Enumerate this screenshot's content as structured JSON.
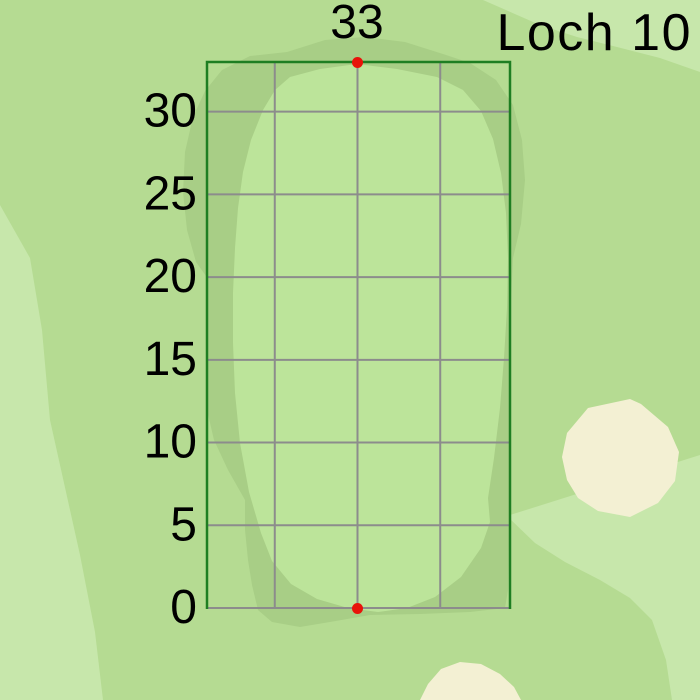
{
  "header": {
    "title": "Loch 10",
    "top_distance_label": "33"
  },
  "axis": {
    "tick_labels": [
      "0",
      "5",
      "10",
      "15",
      "20",
      "25",
      "30"
    ],
    "tick_values": [
      0,
      5,
      10,
      15,
      20,
      25,
      30
    ],
    "y_min": 0,
    "y_max": 33,
    "x_gridline_values": [
      -5,
      0,
      5
    ]
  },
  "markers": [
    {
      "name": "green-back-marker",
      "x": 0,
      "y": 33
    },
    {
      "name": "green-front-marker",
      "x": 0,
      "y": 0
    }
  ],
  "features": {
    "putting_green": "putting-green",
    "fringe": "fringe-collar",
    "bunkers": [
      "greenside-bunker-right",
      "bunker-bottom-edge"
    ]
  },
  "colors": {
    "background": "#b5db92",
    "background_light": "#c7e7ab",
    "fringe": "#a8ce86",
    "green": "#bce49a",
    "bunker": "#f3f0d3",
    "grid_border": "#1e7e22",
    "grid_line": "#8c8c8c",
    "marker": "#e8130a",
    "text": "#000000"
  },
  "chart_data": {
    "type": "map",
    "title": "Loch 10",
    "green_depth_m": 33,
    "y_ticks": [
      0,
      5,
      10,
      15,
      20,
      25,
      30
    ],
    "top_label_value": 33,
    "x_gridlines_m": [
      -5,
      0,
      5
    ],
    "grid_y_range_m": [
      0,
      33
    ],
    "markers": [
      {
        "label": "back_of_green",
        "x": 0,
        "y": 33
      },
      {
        "label": "front_of_green",
        "x": 0,
        "y": 0
      }
    ]
  }
}
